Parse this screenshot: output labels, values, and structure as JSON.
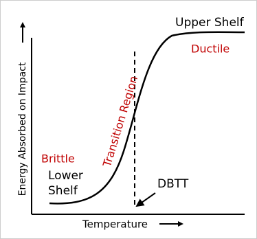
{
  "labels": {
    "upper_shelf": "Upper Shelf",
    "ductile": "Ductile",
    "transition_region": "Transition Region",
    "brittle": "Brittle",
    "lower_shelf": [
      "Lower",
      "Shelf"
    ],
    "dbtt": "DBTT"
  },
  "axes": {
    "x_label": "Temperature",
    "y_label": "Energy Absorbed on Impact"
  }
}
